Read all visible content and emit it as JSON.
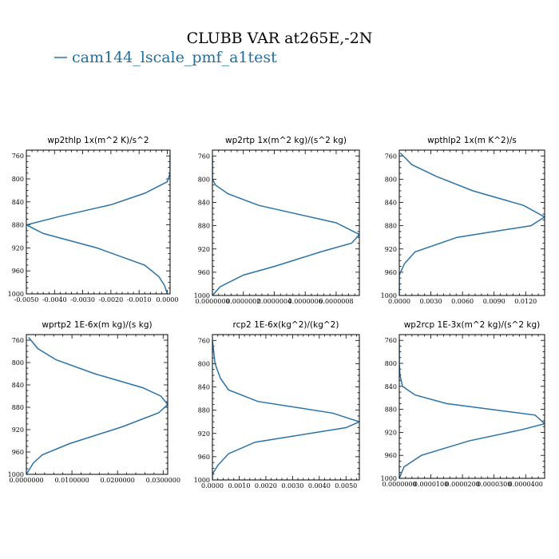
{
  "title": "CLUBB VAR at265E,-2N",
  "legend": {
    "label": "cam144_lscale_pmf_a1test",
    "color": "#2a73a8"
  },
  "chart_data": [
    {
      "type": "line",
      "title": "wp2thlp  1x(m^2 K)/s^2",
      "xlim": [
        -0.005,
        0.0001
      ],
      "ylim": [
        1000,
        750
      ],
      "yticks": [
        760,
        800,
        840,
        880,
        920,
        960,
        1000
      ],
      "xticks": [
        -0.005,
        -0.004,
        -0.003,
        -0.002,
        -0.001,
        0.0
      ],
      "xtick_labels": [
        "-0.0050",
        "-0.0040",
        "-0.0030",
        "-0.0020",
        "-0.0010",
        "0.0000"
      ],
      "series": [
        {
          "x": [
            0.0001,
            0.0001,
            0.0,
            -0.0008,
            -0.002,
            -0.0038,
            -0.005,
            -0.0044,
            -0.0025,
            -0.0008,
            -0.0003,
            -0.0001,
            0.0
          ],
          "y": [
            760,
            790,
            805,
            825,
            845,
            865,
            880,
            895,
            920,
            950,
            970,
            985,
            1000
          ]
        }
      ]
    },
    {
      "type": "line",
      "title": "wp2rtp  1x(m^2 kg)/(s^2 kg)",
      "xlim": [
        0,
        9.5e-07
      ],
      "ylim": [
        1000,
        750
      ],
      "yticks": [
        760,
        800,
        840,
        880,
        920,
        960,
        1000
      ],
      "xticks": [
        0,
        2e-07,
        4e-07,
        6e-07,
        8e-07
      ],
      "xtick_labels": [
        "0.0000000",
        "0.0000002",
        "0.0000004",
        "0.0000006",
        "0.0000008"
      ],
      "series": [
        {
          "x": [
            0.0,
            0.0,
            2e-08,
            1e-07,
            3e-07,
            8e-07,
            9.5e-07,
            9e-07,
            7e-07,
            4e-07,
            2e-07,
            5e-08,
            0.0
          ],
          "y": [
            760,
            800,
            810,
            825,
            845,
            875,
            895,
            910,
            925,
            950,
            965,
            985,
            1000
          ]
        }
      ]
    },
    {
      "type": "line",
      "title": "wpthlp2  1x(m K^2)/s",
      "xlim": [
        0,
        0.0138
      ],
      "ylim": [
        1000,
        750
      ],
      "yticks": [
        760,
        800,
        840,
        880,
        920,
        960,
        1000
      ],
      "xticks": [
        0,
        0.003,
        0.006,
        0.009,
        0.012
      ],
      "xtick_labels": [
        "0.0000",
        "0.0030",
        "0.0060",
        "0.0090",
        "0.0120"
      ],
      "series": [
        {
          "x": [
            0.0001,
            0.0012,
            0.0035,
            0.007,
            0.0118,
            0.0138,
            0.0125,
            0.0055,
            0.0015,
            0.0005,
            0.0,
            0.0
          ],
          "y": [
            755,
            775,
            795,
            820,
            845,
            865,
            880,
            900,
            925,
            945,
            965,
            1000
          ]
        }
      ]
    },
    {
      "type": "line",
      "title": "wprtp2  1E-6x(m kg)/(s kg)",
      "xlim": [
        0,
        0.031
      ],
      "ylim": [
        1000,
        750
      ],
      "yticks": [
        760,
        800,
        840,
        880,
        920,
        960,
        1000
      ],
      "xticks": [
        0,
        0.01,
        0.02,
        0.03
      ],
      "xtick_labels": [
        "0.0000000",
        "0.0100000",
        "0.0200000",
        "0.0300000"
      ],
      "series": [
        {
          "x": [
            0.0005,
            0.0025,
            0.0065,
            0.015,
            0.0255,
            0.0295,
            0.031,
            0.029,
            0.021,
            0.0095,
            0.0035,
            0.0015,
            0.0
          ],
          "y": [
            755,
            775,
            795,
            820,
            845,
            860,
            875,
            890,
            915,
            945,
            965,
            980,
            1000
          ]
        }
      ]
    },
    {
      "type": "line",
      "title": "rcp2  1E-6x(kg^2)/(kg^2)",
      "xlim": [
        0,
        0.0055
      ],
      "ylim": [
        1000,
        750
      ],
      "yticks": [
        760,
        800,
        840,
        880,
        920,
        960,
        1000
      ],
      "xticks": [
        0,
        0.001,
        0.002,
        0.003,
        0.004,
        0.005
      ],
      "xtick_labels": [
        "0.0000",
        "0.0010",
        "0.0020",
        "0.0030",
        "0.0040",
        "0.0050"
      ],
      "series": [
        {
          "x": [
            0.0,
            0.0001,
            0.0003,
            0.0006,
            0.0017,
            0.0045,
            0.0055,
            0.005,
            0.0016,
            0.0006,
            0.0002,
            0.0,
            0.0
          ],
          "y": [
            760,
            800,
            825,
            845,
            865,
            885,
            900,
            910,
            935,
            955,
            975,
            990,
            1000
          ]
        }
      ]
    },
    {
      "type": "line",
      "title": "wp2rcp  1E-3x(m^2 kg)/(s^2 kg)",
      "xlim": [
        0,
        4.6e-05
      ],
      "ylim": [
        1000,
        750
      ],
      "yticks": [
        760,
        800,
        840,
        880,
        920,
        960,
        1000
      ],
      "xticks": [
        0,
        1e-05,
        2e-05,
        3e-05,
        4e-05
      ],
      "xtick_labels": [
        "0.0000000",
        "0.0000100",
        "0.0000200",
        "0.0000300",
        "0.0000400"
      ],
      "series": [
        {
          "x": [
            0.0,
            0.0,
            2e-07,
            1e-06,
            5e-06,
            1.5e-05,
            4.3e-05,
            4.6e-05,
            3.9e-05,
            2.2e-05,
            7e-06,
            1.5e-06,
            0.0
          ],
          "y": [
            760,
            800,
            820,
            840,
            855,
            870,
            890,
            905,
            915,
            935,
            960,
            980,
            1000
          ]
        }
      ]
    }
  ]
}
